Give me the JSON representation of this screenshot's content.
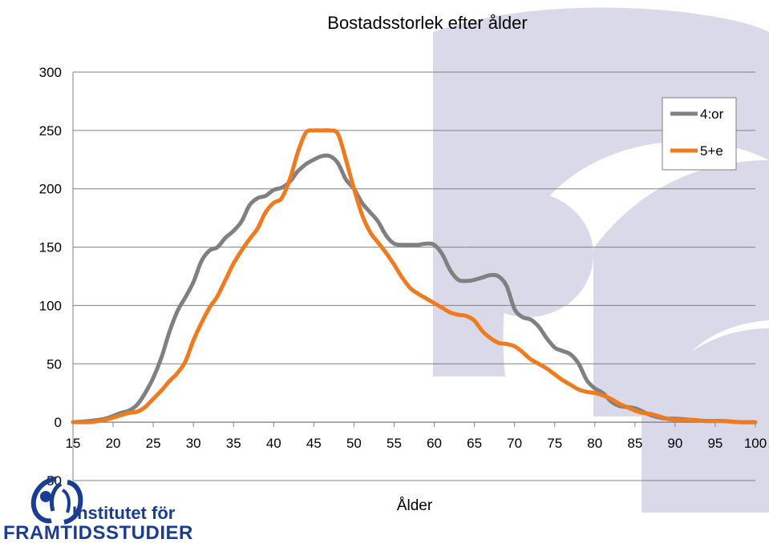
{
  "chart_data": {
    "type": "line",
    "title": "Bostadsstorlek efter ålder",
    "xlabel": "Ålder",
    "ylabel": "",
    "xlim": [
      15,
      100
    ],
    "ylim": [
      -50,
      300
    ],
    "x_ticks": [
      15,
      20,
      25,
      30,
      35,
      40,
      45,
      50,
      55,
      60,
      65,
      70,
      75,
      80,
      85,
      90,
      95,
      100
    ],
    "y_ticks": [
      -50,
      0,
      50,
      100,
      150,
      200,
      250,
      300
    ],
    "legend_position": "top-right",
    "grid": "horizontal",
    "series": [
      {
        "name": "4:or",
        "color": "#808080",
        "x": [
          15,
          17,
          19,
          21,
          22,
          23,
          24,
          25,
          26,
          27,
          28,
          29,
          30,
          31,
          32,
          33,
          34,
          35,
          36,
          37,
          38,
          39,
          40,
          41,
          42,
          43,
          44,
          45,
          46,
          47,
          48,
          49,
          50,
          51,
          52,
          53,
          54,
          55,
          56,
          57,
          58,
          59,
          60,
          61,
          62,
          63,
          64,
          65,
          66,
          67,
          68,
          69,
          70,
          71,
          72,
          73,
          74,
          75,
          76,
          77,
          78,
          79,
          80,
          81,
          82,
          83,
          84,
          85,
          86,
          87,
          88,
          89,
          90,
          92,
          94,
          96,
          98,
          100
        ],
        "y": [
          0,
          1,
          3,
          8,
          10,
          15,
          25,
          38,
          55,
          77,
          95,
          107,
          120,
          138,
          147,
          150,
          158,
          164,
          172,
          186,
          192,
          194,
          199,
          201,
          206,
          215,
          221,
          225,
          228,
          228,
          222,
          208,
          200,
          188,
          180,
          172,
          160,
          153,
          152,
          152,
          152,
          153,
          152,
          144,
          130,
          122,
          121,
          122,
          124,
          126,
          125,
          117,
          97,
          90,
          88,
          82,
          72,
          64,
          61,
          58,
          50,
          36,
          29,
          25,
          18,
          14,
          13,
          12,
          9,
          6,
          4,
          3,
          3,
          2,
          1,
          1,
          0,
          0
        ]
      },
      {
        "name": "5+e",
        "color": "#f07a1e",
        "x": [
          15,
          17,
          19,
          21,
          22,
          23,
          24,
          25,
          26,
          27,
          28,
          29,
          30,
          31,
          32,
          33,
          34,
          35,
          36,
          37,
          38,
          39,
          40,
          41,
          42,
          43,
          44,
          45,
          46,
          47,
          48,
          49,
          50,
          51,
          52,
          53,
          54,
          55,
          56,
          57,
          58,
          59,
          60,
          61,
          62,
          63,
          64,
          65,
          66,
          67,
          68,
          69,
          70,
          71,
          72,
          73,
          74,
          75,
          76,
          77,
          78,
          79,
          80,
          81,
          82,
          83,
          84,
          85,
          86,
          87,
          88,
          89,
          90,
          92,
          94,
          96,
          98,
          100
        ],
        "y": [
          0,
          0,
          2,
          6,
          8,
          9,
          13,
          20,
          27,
          35,
          42,
          52,
          70,
          85,
          98,
          108,
          122,
          136,
          147,
          157,
          166,
          180,
          188,
          192,
          208,
          231,
          248,
          250,
          250,
          250,
          247,
          225,
          200,
          178,
          163,
          154,
          145,
          135,
          124,
          115,
          110,
          106,
          102,
          98,
          94,
          92,
          91,
          87,
          78,
          72,
          68,
          67,
          65,
          60,
          54,
          50,
          46,
          41,
          36,
          32,
          28,
          26,
          25,
          23,
          20,
          16,
          13,
          10,
          8,
          7,
          5,
          3,
          2,
          2,
          1,
          1,
          0,
          0
        ]
      }
    ]
  },
  "logo": {
    "line1": "Institutet för",
    "line2": "FRAMTIDSSTUDIER",
    "color": "#1b3d8f"
  },
  "background_mark_color": "#d9d9ea"
}
